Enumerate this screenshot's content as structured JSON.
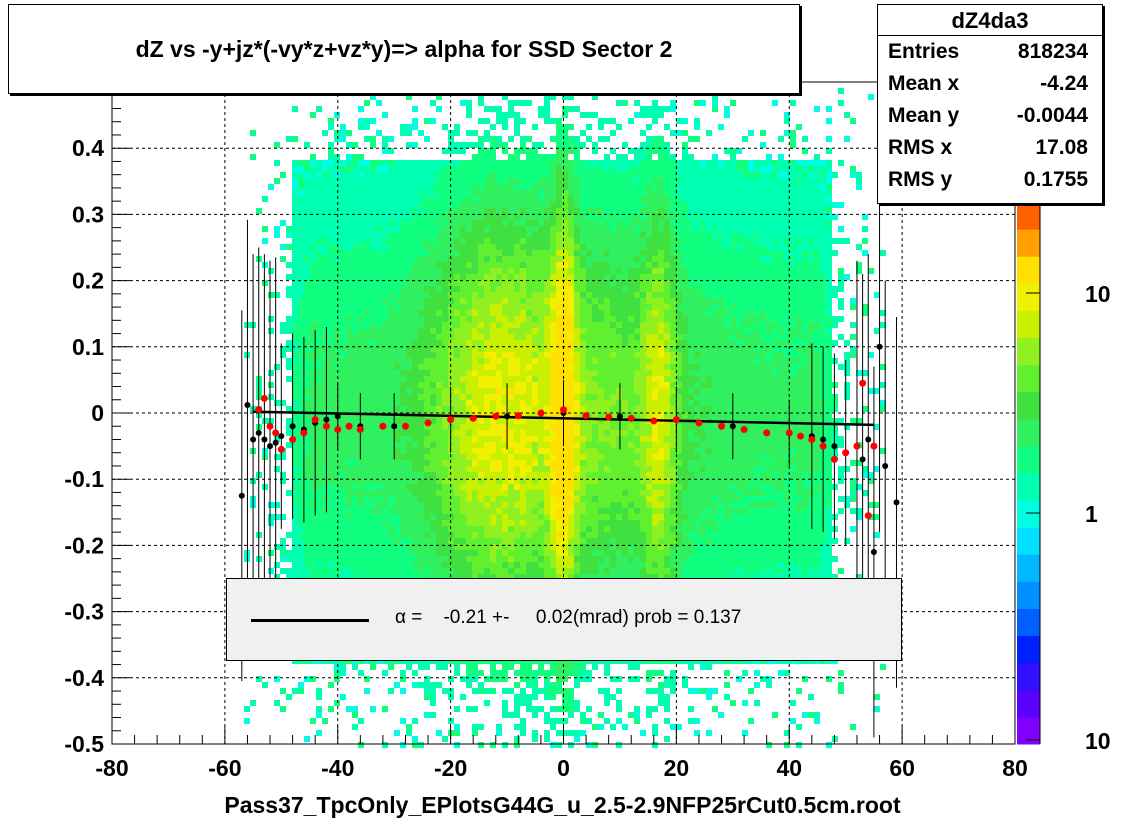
{
  "title": "dZ vs -y+jz*(-vy*z+vz*y)=> alpha for SSD Sector 2",
  "stats": {
    "name": "dZ4da3",
    "rows": [
      {
        "label": "Entries",
        "value": "818234"
      },
      {
        "label": "Mean x",
        "value": "-4.24"
      },
      {
        "label": "Mean y",
        "value": "-0.0044"
      },
      {
        "label": "RMS x",
        "value": "17.08"
      },
      {
        "label": "RMS y",
        "value": "0.1755"
      }
    ]
  },
  "legend": {
    "symbol": "α",
    "text": " =    -0.21 +-     0.02(mrad) prob = 0.137"
  },
  "xlabel": "Pass37_TpcOnly_EPlotsG44G_u_2.5-2.9NFP25rCut0.5cm.root",
  "colors": {
    "palette": [
      "#7f00ff",
      "#5a00ff",
      "#3010ff",
      "#0020ff",
      "#0060ff",
      "#0090ff",
      "#00b8ff",
      "#00e0ff",
      "#00ffe0",
      "#00ffb0",
      "#10ff80",
      "#30f060",
      "#40e040",
      "#60f030",
      "#90f020",
      "#c8f000",
      "#f0f000",
      "#ffe000",
      "#ffa000",
      "#ff6000"
    ],
    "profile_red": "#ff0000",
    "profile_black": "#000000",
    "fit_line": "#000000"
  },
  "chart_data": {
    "type": "heatmap",
    "xlim": [
      -80,
      80
    ],
    "ylim": [
      -0.5,
      0.5
    ],
    "x_ticks": [
      -80,
      -60,
      -40,
      -20,
      0,
      20,
      40,
      60,
      80
    ],
    "y_ticks": [
      -0.5,
      -0.4,
      -0.3,
      -0.2,
      -0.1,
      0,
      0.1,
      0.2,
      0.3,
      0.4
    ],
    "y_tick_labels": [
      "-0.5",
      "-0.4",
      "-0.3",
      "-0.2",
      "-0.1",
      "0",
      "0.1",
      "0.2",
      "0.3",
      "0.4"
    ],
    "grid": true,
    "colorbar": {
      "scale": "log",
      "tick_labels": [
        "10",
        "1",
        "10"
      ]
    },
    "fit_line": {
      "x": [
        -55,
        55
      ],
      "y": [
        0.002,
        -0.018
      ]
    },
    "profile_black": {
      "x": [
        -57,
        -56,
        -55,
        -54,
        -53,
        -52,
        -51,
        -50,
        -48,
        -46,
        -44,
        -42,
        -40,
        -36,
        -30,
        -20,
        -10,
        0,
        10,
        20,
        30,
        40,
        44,
        46,
        48,
        50,
        52,
        53,
        54,
        55,
        56,
        57,
        59
      ],
      "y": [
        -0.125,
        0.012,
        -0.04,
        -0.03,
        -0.04,
        -0.05,
        -0.045,
        -0.035,
        -0.02,
        -0.025,
        -0.015,
        -0.01,
        -0.005,
        -0.02,
        -0.02,
        -0.01,
        -0.005,
        0.0,
        -0.005,
        -0.01,
        -0.02,
        -0.03,
        -0.035,
        -0.04,
        -0.05,
        -0.06,
        -0.05,
        -0.07,
        -0.04,
        -0.21,
        0.1,
        -0.08,
        -0.135
      ]
    },
    "profile_red": {
      "x": [
        -54,
        -53,
        -52,
        -51,
        -50,
        -48,
        -46,
        -44,
        -42,
        -40,
        -38,
        -36,
        -32,
        -28,
        -24,
        -20,
        -16,
        -12,
        -8,
        -4,
        0,
        4,
        8,
        12,
        16,
        20,
        24,
        28,
        32,
        36,
        40,
        42,
        44,
        46,
        48,
        50,
        52,
        53,
        54,
        55
      ],
      "y": [
        0.005,
        0.022,
        -0.02,
        -0.03,
        -0.055,
        -0.04,
        -0.03,
        -0.01,
        -0.02,
        -0.025,
        -0.02,
        -0.025,
        -0.02,
        -0.02,
        -0.015,
        -0.01,
        -0.008,
        -0.005,
        -0.004,
        0.0,
        0.005,
        -0.004,
        -0.006,
        -0.008,
        -0.012,
        -0.01,
        -0.015,
        -0.02,
        -0.025,
        -0.03,
        -0.03,
        -0.035,
        -0.04,
        -0.05,
        -0.07,
        -0.06,
        -0.05,
        0.045,
        -0.155,
        -0.05
      ]
    }
  }
}
